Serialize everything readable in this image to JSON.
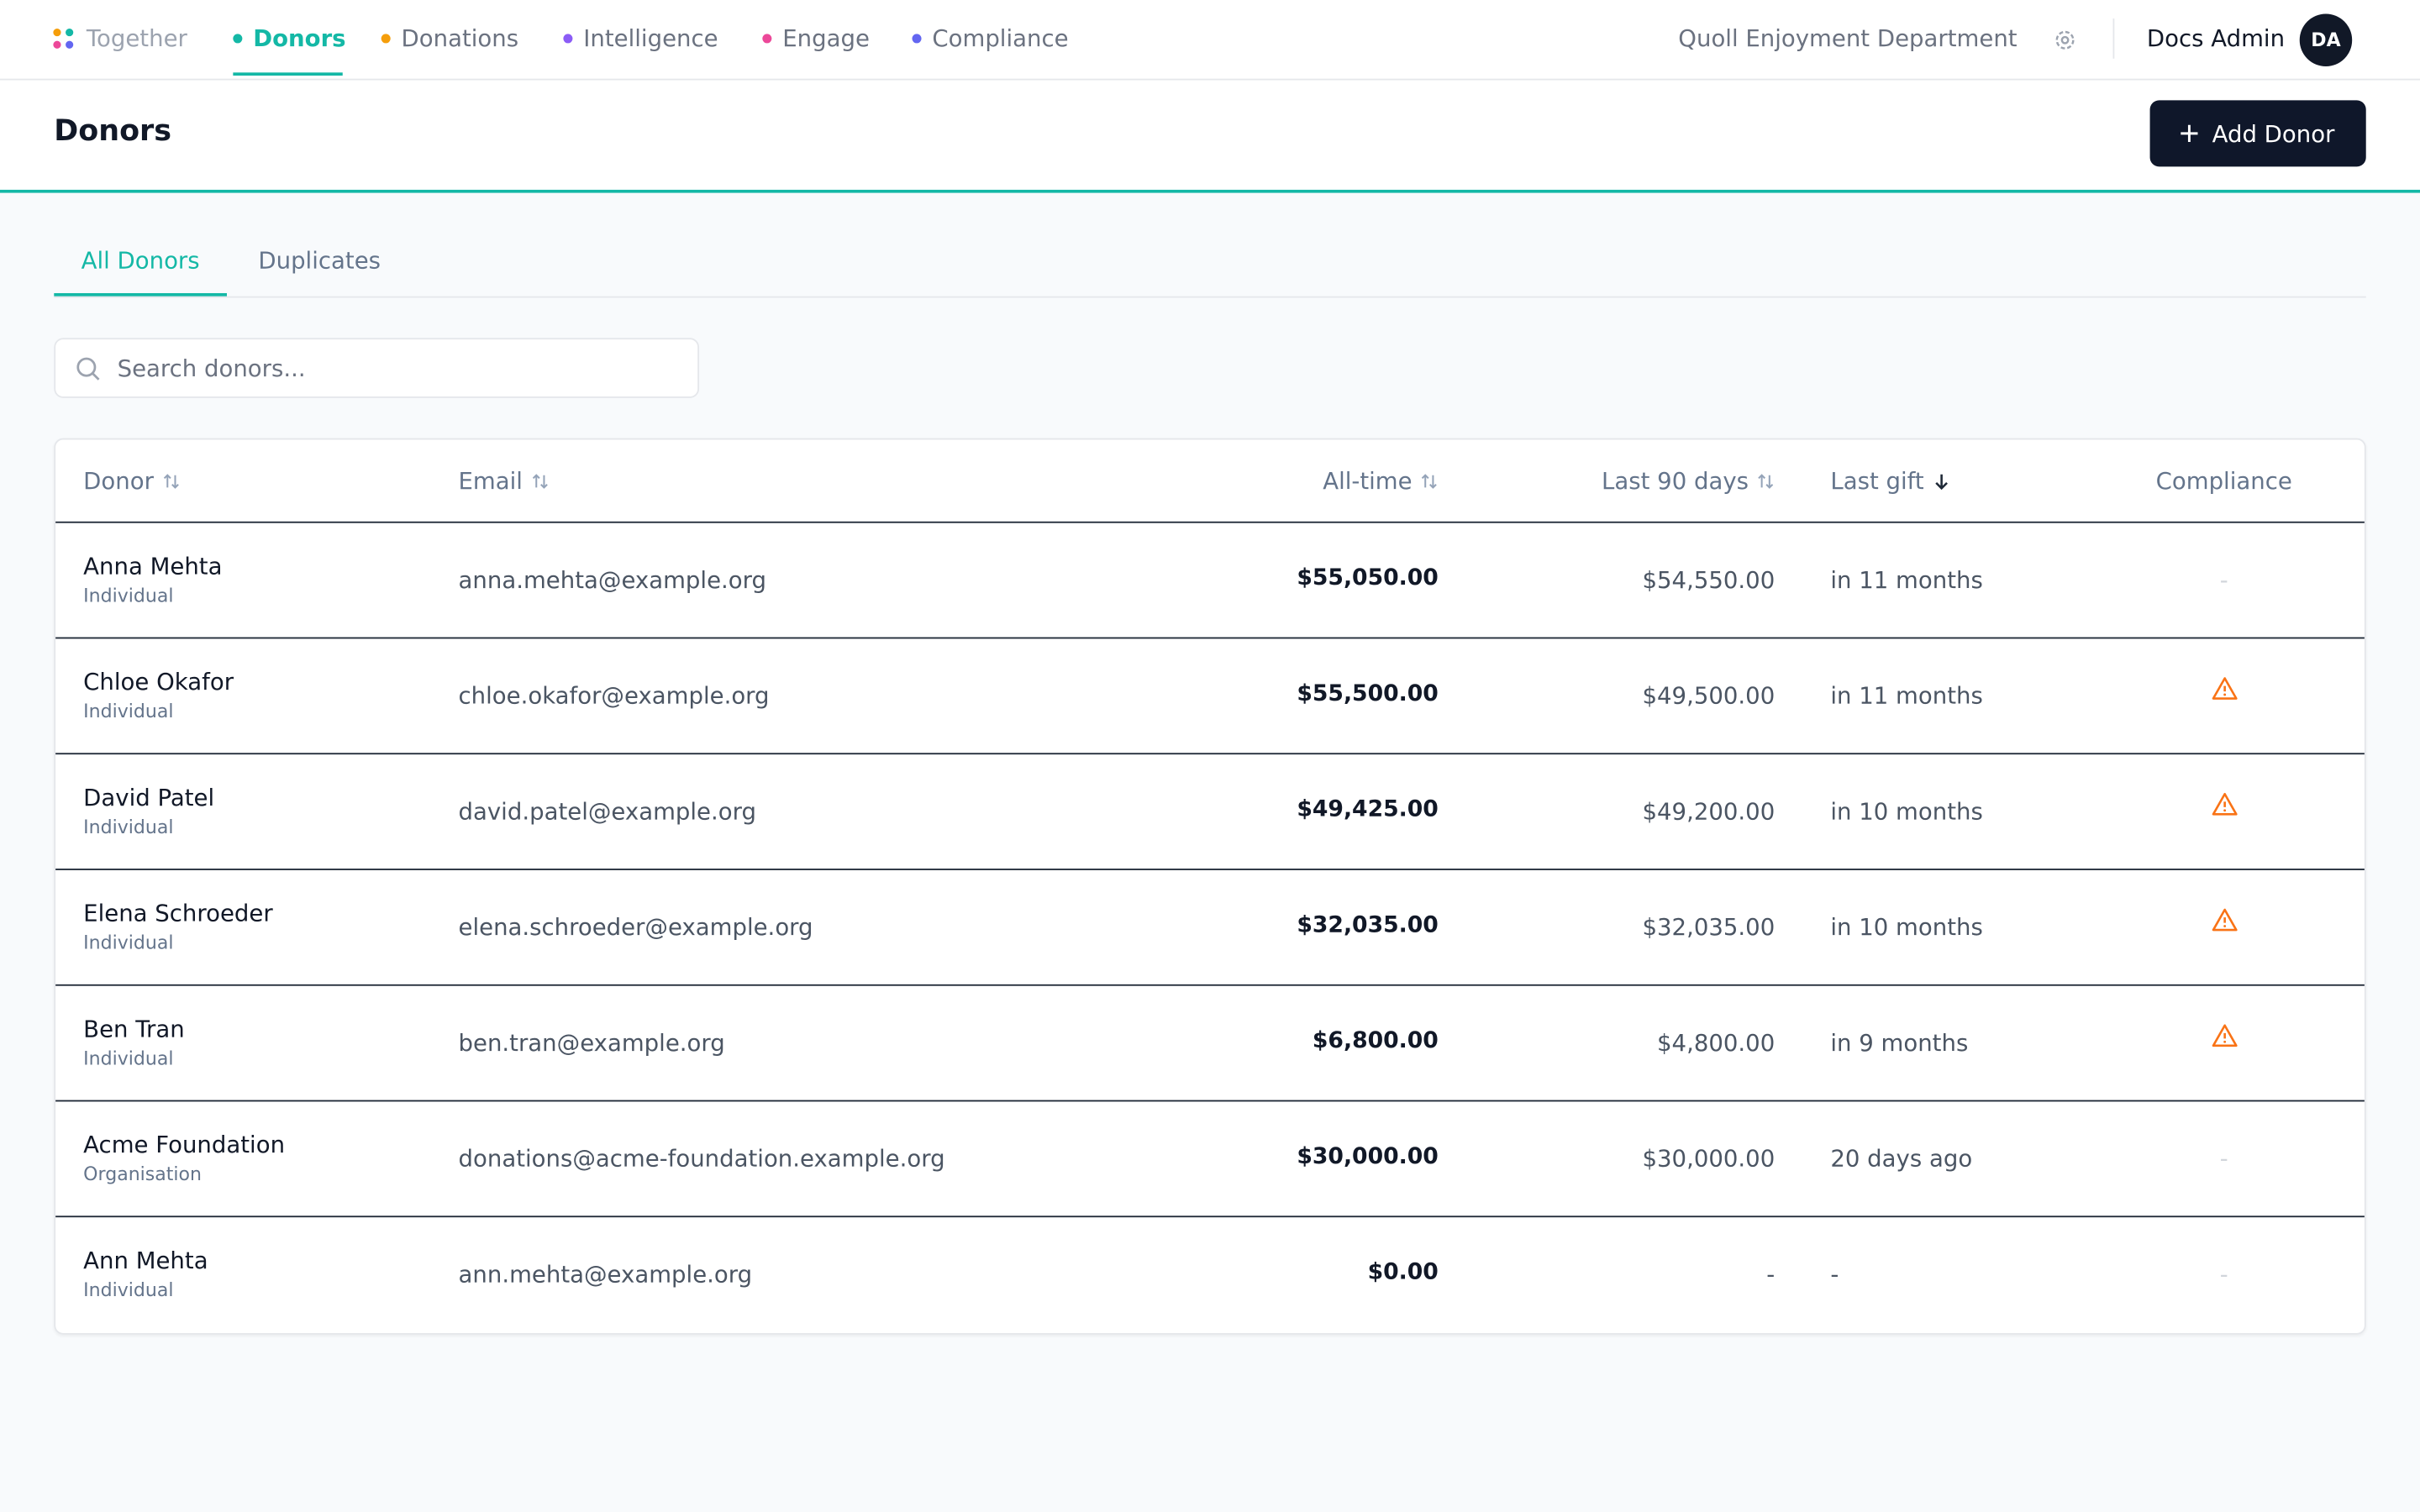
{
  "nav": {
    "brand": "Together",
    "items": [
      {
        "label": "Donors",
        "color": "#14b8a6",
        "active": true
      },
      {
        "label": "Donations",
        "color": "#f59e0b",
        "active": false
      },
      {
        "label": "Intelligence",
        "color": "#8b5cf6",
        "active": false
      },
      {
        "label": "Engage",
        "color": "#ec4899",
        "active": false
      },
      {
        "label": "Compliance",
        "color": "#6366f1",
        "active": false
      }
    ],
    "organisation": "Quoll Enjoyment Department",
    "user": "Docs Admin",
    "initials": "DA"
  },
  "header": {
    "title": "Donors",
    "button": "Add Donor"
  },
  "tabs": [
    {
      "label": "All Donors",
      "active": true
    },
    {
      "label": "Duplicates",
      "active": false
    }
  ],
  "search": {
    "placeholder": "Search donors..."
  },
  "table": {
    "columns": [
      "Donor",
      "Email",
      "All-time",
      "Last 90 days",
      "Last gift",
      "Compliance"
    ],
    "rows": [
      {
        "name": "Anna Mehta",
        "type": "Individual",
        "email": "anna.mehta@example.org",
        "all_time": "$55,050.00",
        "last_90": "$54,550.00",
        "last_gift": "in 11 months",
        "compliance": "-"
      },
      {
        "name": "Chloe Okafor",
        "type": "Individual",
        "email": "chloe.okafor@example.org",
        "all_time": "$55,500.00",
        "last_90": "$49,500.00",
        "last_gift": "in 11 months",
        "warning": true
      },
      {
        "name": "David Patel",
        "type": "Individual",
        "email": "david.patel@example.org",
        "all_time": "$49,425.00",
        "last_90": "$49,200.00",
        "last_gift": "in 10 months",
        "warning": true
      },
      {
        "name": "Elena Schroeder",
        "type": "Individual",
        "email": "elena.schroeder@example.org",
        "all_time": "$32,035.00",
        "last_90": "$32,035.00",
        "last_gift": "in 10 months",
        "warning": true
      },
      {
        "name": "Ben Tran",
        "type": "Individual",
        "email": "ben.tran@example.org",
        "all_time": "$6,800.00",
        "last_90": "$4,800.00",
        "last_gift": "in 9 months",
        "warning": true
      },
      {
        "name": "Acme Foundation",
        "type": "Organisation",
        "email": "donations@acme-foundation.example.org",
        "all_time": "$30,000.00",
        "last_90": "$30,000.00",
        "last_gift": "20 days ago",
        "compliance": "-"
      },
      {
        "name": "Ann Mehta",
        "type": "Individual",
        "email": "ann.mehta@example.org",
        "all_time": "$0.00",
        "last_90": "-",
        "last_gift": "-",
        "compliance": "-"
      }
    ]
  }
}
